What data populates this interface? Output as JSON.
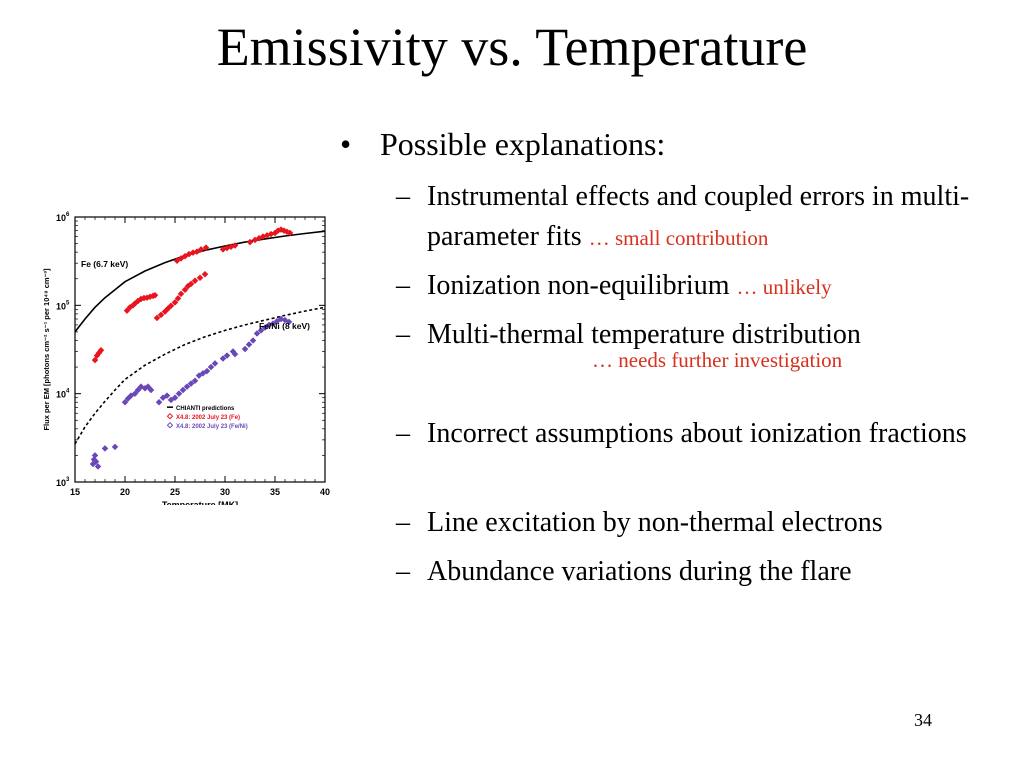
{
  "slide": {
    "title": "Emissivity vs. Temperature",
    "page_number": "34",
    "bullet_main": "Possible explanations:",
    "bullet_char": "•",
    "dash_char": "–",
    "items": [
      {
        "text": "Instrumental effects and coupled errors in multi-parameter fits",
        "note": "… small contribution"
      },
      {
        "text": "Ionization non-equilibrium",
        "note": "… unlikely"
      },
      {
        "text": "Multi-thermal temperature distribution",
        "note": "… needs further investigation"
      },
      {
        "text": "Incorrect assumptions about ionization fractions",
        "note": ""
      },
      {
        "text": "Line excitation by non-thermal electrons",
        "note": ""
      },
      {
        "text": "Abundance variations during the flare",
        "note": ""
      }
    ]
  },
  "chart_data": {
    "type": "scatter",
    "xlabel": "Temperature [MK]",
    "ylabel": "Flux per EM [photons cm⁻² s⁻¹ per 10⁴⁸ cm⁻³]",
    "xlim": [
      15,
      40
    ],
    "ylim": [
      1000,
      1000000
    ],
    "yscale": "log",
    "x_ticks": [
      "15",
      "20",
      "25",
      "30",
      "35",
      "40"
    ],
    "y_ticks": [
      {
        "base": "10",
        "exp": "3",
        "value": 1000
      },
      {
        "base": "10",
        "exp": "4",
        "value": 10000
      },
      {
        "base": "10",
        "exp": "5",
        "value": 100000
      },
      {
        "base": "10",
        "exp": "6",
        "value": 1000000
      }
    ],
    "curve_labels": {
      "fe": "Fe (6.7 keV)",
      "feni": "Fe/Ni (8 keV)"
    },
    "legend": [
      {
        "label": "CHIANTI predictions",
        "color": "#000000",
        "marker": "line"
      },
      {
        "label": "X4.8: 2002 July 23 (Fe)",
        "color": "#e8141e",
        "marker": "diamond"
      },
      {
        "label": "X4.8: 2002 July 23 (Fe/Ni)",
        "color": "#6a48b8",
        "marker": "diamond"
      }
    ],
    "legend_position": "lower-right",
    "series": [
      {
        "name": "CHIANTI predictions",
        "style": "solid",
        "color": "#000000",
        "x": [
          15,
          16,
          17,
          18,
          19,
          20,
          22,
          24,
          26,
          28,
          30,
          32,
          34,
          36,
          38,
          40
        ],
        "y": [
          50000,
          70000,
          95000,
          122000,
          150000,
          185000,
          245000,
          305000,
          365000,
          420000,
          470000,
          520000,
          565000,
          610000,
          650000,
          690000
        ]
      },
      {
        "name": "CHIANTI predictions",
        "style": "dashed",
        "color": "#000000",
        "x": [
          15,
          16,
          17,
          18,
          19,
          20,
          22,
          24,
          26,
          28,
          30,
          32,
          34,
          36,
          38,
          40
        ],
        "y": [
          2700,
          4200,
          6000,
          8200,
          11000,
          14500,
          21000,
          28000,
          36000,
          44000,
          52000,
          60000,
          68000,
          77000,
          86000,
          95000
        ]
      },
      {
        "name": "X4.8: 2002 July 23 (Fe)",
        "color": "#e8141e",
        "x": [
          17.0,
          17.2,
          17.4,
          17.6,
          20.2,
          20.5,
          20.8,
          21.0,
          21.3,
          21.6,
          21.9,
          22.2,
          22.5,
          22.8,
          23.0,
          23.2,
          23.6,
          24.0,
          24.3,
          24.6,
          25.0,
          25.3,
          25.6,
          26.0,
          26.3,
          26.6,
          27.0,
          27.5,
          28.0,
          25.2,
          25.6,
          26.0,
          26.4,
          26.8,
          27.2,
          27.6,
          28.1,
          29.8,
          30.2,
          30.6,
          31.0,
          32.5,
          33.0,
          33.4,
          33.8,
          34.2,
          34.6,
          35.0,
          35.3,
          35.6,
          35.9,
          36.2,
          36.5
        ],
        "y": [
          24000,
          27000,
          29000,
          31000,
          87000,
          95000,
          100000,
          105000,
          112000,
          118000,
          121000,
          122000,
          125000,
          128000,
          130000,
          72000,
          78000,
          85000,
          92000,
          99000,
          108000,
          120000,
          135000,
          150000,
          165000,
          175000,
          190000,
          205000,
          225000,
          320000,
          340000,
          360000,
          380000,
          395000,
          405000,
          430000,
          450000,
          430000,
          445000,
          460000,
          475000,
          520000,
          550000,
          575000,
          600000,
          620000,
          640000,
          660000,
          700000,
          720000,
          700000,
          680000,
          660000
        ]
      },
      {
        "name": "X4.8: 2002 July 23 (Fe/Ni)",
        "color": "#6a48b8",
        "x": [
          16.8,
          16.9,
          17.0,
          17.1,
          17.3,
          18.0,
          19.0,
          20.0,
          20.3,
          20.6,
          21.0,
          21.3,
          21.6,
          22.0,
          22.3,
          22.6,
          23.4,
          23.8,
          24.2,
          24.6,
          25.0,
          25.4,
          25.8,
          26.2,
          26.6,
          27.0,
          27.4,
          27.8,
          28.2,
          28.6,
          29.0,
          29.8,
          30.2,
          30.8,
          31.0,
          32.0,
          32.4,
          32.8,
          33.2,
          33.6,
          34.0,
          34.4,
          34.8,
          35.2,
          35.6,
          36.0,
          36.4
        ],
        "y": [
          1600,
          1800,
          2000,
          1700,
          1500,
          2400,
          2500,
          8000,
          8800,
          9500,
          10000,
          11000,
          12000,
          11500,
          12000,
          11000,
          8000,
          9000,
          9500,
          8500,
          9000,
          10000,
          11000,
          12000,
          13000,
          14000,
          16000,
          17000,
          18000,
          20000,
          22000,
          25000,
          27000,
          30000,
          28000,
          32000,
          36000,
          40000,
          48000,
          52000,
          56000,
          60000,
          62000,
          66000,
          70000,
          68000,
          65000
        ]
      }
    ]
  }
}
